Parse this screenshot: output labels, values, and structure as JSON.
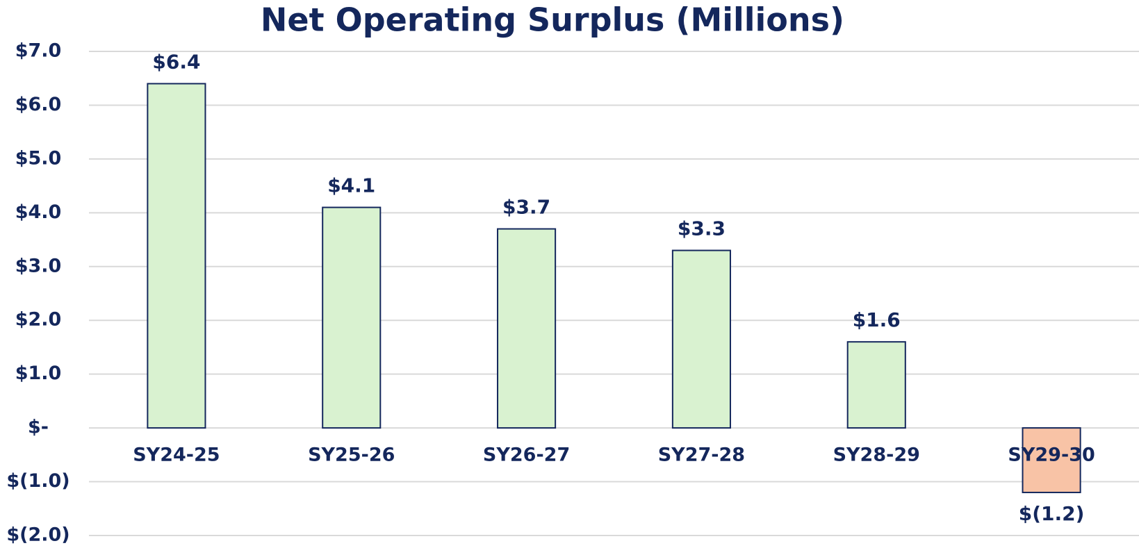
{
  "chart_data": {
    "type": "bar",
    "title": "Net Operating Surplus (Millions)",
    "categories": [
      "SY24-25",
      "SY25-26",
      "SY26-27",
      "SY27-28",
      "SY28-29",
      "SY29-30"
    ],
    "values": [
      6.4,
      4.1,
      3.7,
      3.3,
      1.6,
      -1.2
    ],
    "value_labels": [
      "$6.4",
      "$4.1",
      "$3.7",
      "$3.3",
      "$1.6",
      "$(1.2)"
    ],
    "colors": [
      "#d9f2d0",
      "#d9f2d0",
      "#d9f2d0",
      "#d9f2d0",
      "#d9f2d0",
      "#f8c3a6"
    ],
    "ylim": [
      -2,
      7
    ],
    "yticks": [
      {
        "value": -2,
        "label": "$(2.0)"
      },
      {
        "value": -1,
        "label": "$(1.0)"
      },
      {
        "value": 0,
        "label": "$-"
      },
      {
        "value": 1,
        "label": "$1.0"
      },
      {
        "value": 2,
        "label": "$2.0"
      },
      {
        "value": 3,
        "label": "$3.0"
      },
      {
        "value": 4,
        "label": "$4.0"
      },
      {
        "value": 5,
        "label": "$5.0"
      },
      {
        "value": 6,
        "label": "$6.0"
      },
      {
        "value": 7,
        "label": "$7.0"
      }
    ],
    "grid": true
  }
}
